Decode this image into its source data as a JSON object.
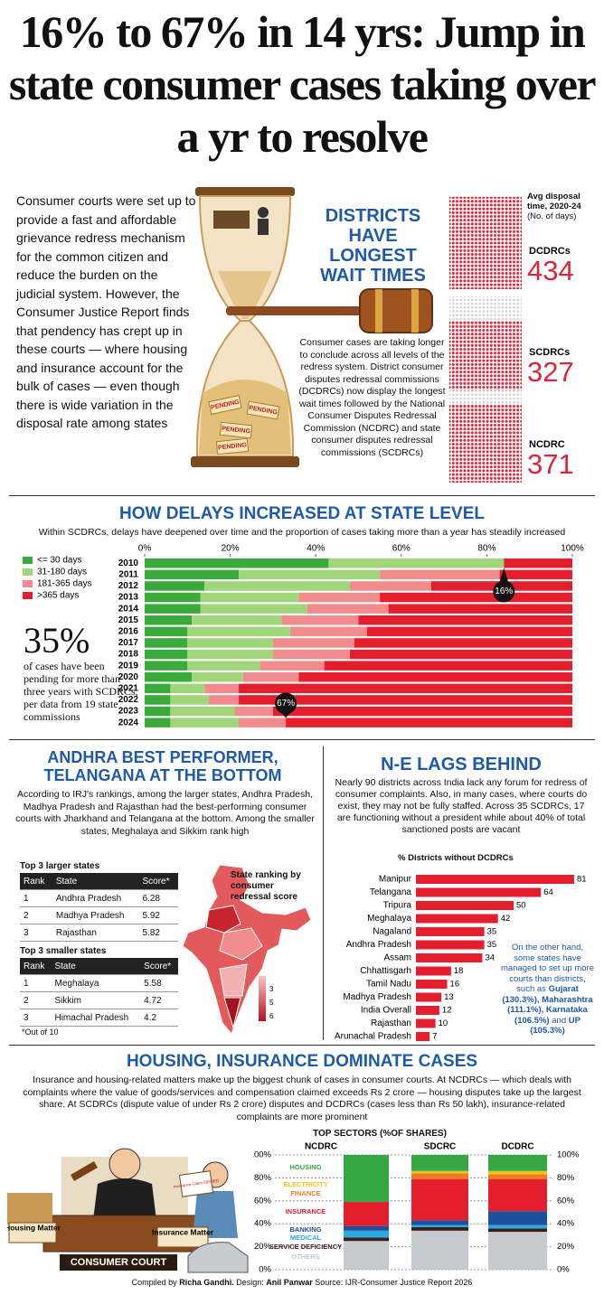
{
  "header": {
    "title": "16% to 67% in 14 yrs: Jump in state consumer cases taking over a yr to resolve"
  },
  "intro": {
    "text": "Consumer courts were set up to provide a fast and affordable grievance redress mechanism for the common citizen and reduce the burden on the judicial system. However, the Consumer Justice Report finds that pendency has crept up in these courts — where housing and insurance account for the bulk of cases — even though there is wide variation in the disposal rate among states",
    "pending_label": "PENDING"
  },
  "districts": {
    "title": "DISTRICTS HAVE LONGEST WAIT TIMES",
    "text": "Consumer cases are taking longer to conclude across all levels of the redress system. District consumer disputes redressal commissions (DCDRCs) now display the longest wait times followed by the National Consumer Disputes Redressal Commission (NCDRC) and state consumer disputes redressal commissions (SCDRCs)"
  },
  "delays_callout": {
    "figure": "35%",
    "text": "of cases have been pending for more than three years with SCDRCs, per data from 19 state commissions"
  },
  "ranking": {
    "title": "ANDHRA BEST PERFORMER, TELANGANA AT THE BOTTOM",
    "text": "According to IRJ's rankings, among the larger states, Andhra Pradesh, Madhya Pradesh and Rajasthan had the best-performing consumer courts with Jharkhand and Telangana at the bottom. Among the smaller states, Meghalaya and Sikkim rank high",
    "tables": [
      {
        "title": "Top 3 larger states",
        "columns": [
          "Rank",
          "State",
          "Score*"
        ],
        "rows": [
          [
            1,
            "Andhra Pradesh",
            6.28
          ],
          [
            2,
            "Madhya Pradesh",
            5.92
          ],
          [
            3,
            "Rajasthan",
            5.82
          ]
        ]
      },
      {
        "title": "Top 3 smaller states",
        "columns": [
          "Rank",
          "State",
          "Score*"
        ],
        "rows": [
          [
            1,
            "Meghalaya",
            5.58
          ],
          [
            2,
            "Sikkim",
            4.72
          ],
          [
            3,
            "Himachal Pradesh",
            4.2
          ]
        ]
      }
    ],
    "footnote": "*Out of 10",
    "map": {
      "title": "State ranking by consumer redressal score",
      "legend": [
        3,
        5,
        6
      ]
    }
  },
  "lags": {
    "title": "N-E LAGS BEHIND",
    "text": "Nearly 90 districts across India lack any forum for redress of consumer complaints. Also, in many cases, where courts do exist, they may not be fully staffed. Across 35 SCDRCs, 17 are functioning without a president while about 40% of total sanctioned posts are vacant",
    "note": [
      "On the other hand, some states have managed to set up more courts than districts, such as",
      "Gujarat (130.3%),",
      "Maharashtra (111.1%), Karnataka (106.5%)",
      "and",
      "UP (105.3%)"
    ]
  },
  "housing": {
    "title": "HOUSING, INSURANCE DOMINATE CASES",
    "text": "Insurance and housing-related matters make up the biggest chunk of cases in consumer courts. At NCDRCs — which deals with complaints where the value of goods/services and compensation claimed exceeds Rs 2 crore — housing disputes take up the largest share. At SCDRCs (dispute value of under Rs 2 crore) disputes and DCDRCs (cases less than Rs 50 lakh), insurance-related complaints are more prominent",
    "labels": [
      "Housing Matter",
      "Insurance Matter",
      "CONSUMER COURT",
      "Insurance Claim DENIED"
    ]
  },
  "credit": [
    "Compiled by",
    "Richa Gandhi.",
    "Design:",
    "Anil Panwar",
    "Source: IJR-Consumer Justice Report 2026"
  ],
  "chart_data": [
    {
      "type": "pictogram",
      "title": "Avg disposal time, 2020-24",
      "subtitle": "(No. of days)",
      "categories": [
        "DCDRCs",
        "SCDRCs",
        "NCDRC"
      ],
      "values": [
        434,
        327,
        371
      ],
      "color": "#d9263a"
    },
    {
      "type": "stacked-bar",
      "title": "HOW DELAYS INCREASED AT STATE LEVEL",
      "subtitle": "Within SCDRCs, delays have deepened over time and the proportion of cases taking more than a year has steadily increased",
      "categories": [
        "2010",
        "2011",
        "2012",
        "2013",
        "2014",
        "2015",
        "2016",
        "2017",
        "2018",
        "2019",
        "2020",
        "2021",
        "2022",
        "2023",
        "2024"
      ],
      "series": [
        {
          "name": "<= 30 days",
          "color": "#3aaa3c",
          "values": [
            43,
            22,
            14,
            13,
            13,
            11,
            10,
            10,
            10,
            10,
            11,
            6,
            6,
            6,
            6
          ]
        },
        {
          "name": "31-180 days",
          "color": "#9fd67b",
          "values": [
            41,
            33,
            34,
            23,
            25,
            21,
            24,
            20,
            20,
            17,
            12,
            8,
            9,
            15,
            16
          ]
        },
        {
          "name": "181-365 days",
          "color": "#f28b8b",
          "values": [
            0,
            28,
            19,
            19,
            19,
            18,
            18,
            19,
            18,
            15,
            13,
            8,
            7,
            9,
            11
          ]
        },
        {
          "name": ">365 days",
          "color": "#e31e2d",
          "values": [
            16,
            17,
            33,
            45,
            43,
            50,
            48,
            51,
            52,
            58,
            64,
            78,
            78,
            70,
            67
          ],
          "value_labels": [
            "16%",
            null,
            null,
            null,
            null,
            null,
            null,
            null,
            null,
            null,
            null,
            null,
            null,
            null,
            "67%"
          ]
        }
      ],
      "xlim": [
        0,
        100
      ],
      "xticks": [
        {
          "value": 0,
          "label": "0%"
        },
        {
          "value": 20,
          "label": "20%"
        },
        {
          "value": 40,
          "label": "40%"
        },
        {
          "value": 60,
          "label": "60%"
        },
        {
          "value": 80,
          "label": "80%"
        },
        {
          "value": 100,
          "label": "100%"
        }
      ]
    },
    {
      "type": "bar",
      "title": "% Districts without DCDRCs",
      "categories": [
        "Manipur",
        "Telangana",
        "Tripura",
        "Meghalaya",
        "Nagaland",
        "Andhra Pradesh",
        "Assam",
        "Chhattisgarh",
        "Tamil Nadu",
        "Madhya Pradesh",
        "India Overall",
        "Rajasthan",
        "Arunachal Pradesh"
      ],
      "values": [
        81,
        64,
        50,
        42,
        35,
        35,
        34,
        18,
        16,
        13,
        12,
        10,
        7
      ],
      "color": "#e31e2d"
    },
    {
      "type": "stacked-column",
      "title": "TOP SECTORS (%OF SHARES)",
      "categories": [
        "NCDRC",
        "SDCRC",
        "DCDRC"
      ],
      "series": [
        {
          "name": "OTHERS",
          "color": "#c6c9ce",
          "values": [
            25,
            34,
            33
          ]
        },
        {
          "name": "SERVICE DEFICIENCY",
          "color": "#3b1d1a",
          "values": [
            3,
            3,
            3
          ]
        },
        {
          "name": "MEDICAL",
          "color": "#2aa9e0",
          "values": [
            6,
            2,
            3
          ]
        },
        {
          "name": "BANKING",
          "color": "#1d4f9c",
          "values": [
            4,
            4,
            12
          ]
        },
        {
          "name": "INSURANCE",
          "color": "#e31e2d",
          "values": [
            21,
            36,
            28
          ]
        },
        {
          "name": "FINANCE",
          "color": "#ee7d22",
          "values": [
            0,
            5,
            4
          ]
        },
        {
          "name": "ELECTRICITY",
          "color": "#f1c21b",
          "values": [
            0,
            2,
            3
          ]
        },
        {
          "name": "HOUSING",
          "color": "#35a844",
          "values": [
            41,
            14,
            14
          ]
        }
      ],
      "ylim": [
        0,
        100
      ],
      "yticks": [
        {
          "value": 0,
          "label": "0%"
        },
        {
          "value": 20,
          "label": "20%"
        },
        {
          "value": 40,
          "label": "40%"
        },
        {
          "value": 60,
          "label": "60%"
        },
        {
          "value": 80,
          "label": "80%"
        },
        {
          "value": 100,
          "label": "100%"
        }
      ]
    }
  ]
}
